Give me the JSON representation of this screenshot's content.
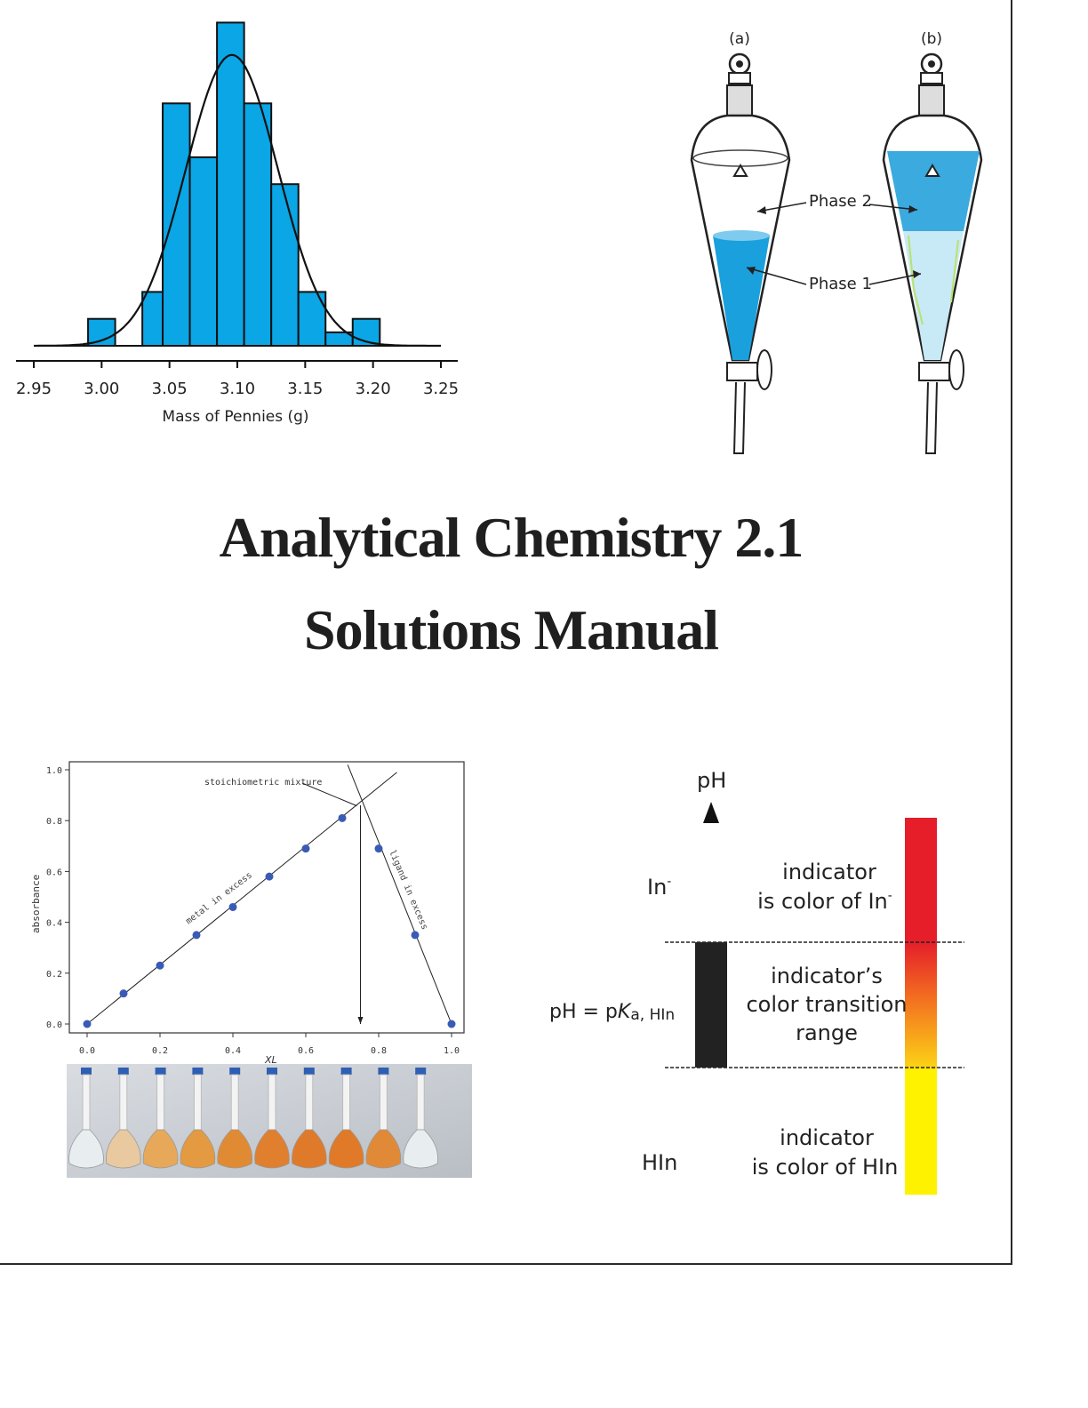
{
  "title": {
    "line1": "Analytical Chemistry 2.1",
    "line2": "Solutions Manual"
  },
  "histogram": {
    "chart_data": {
      "type": "bar",
      "xlabel": "Mass of Pennies (g)",
      "xlim": [
        2.95,
        3.25
      ],
      "x_ticks": [
        "2.95",
        "3.00",
        "3.05",
        "3.10",
        "3.15",
        "3.20",
        "3.25"
      ],
      "bin_edges": [
        2.99,
        3.01,
        3.03,
        3.045,
        3.065,
        3.085,
        3.105,
        3.125,
        3.145,
        3.165,
        3.185,
        3.205
      ],
      "counts": [
        1,
        0,
        2,
        9,
        7,
        12,
        9,
        6,
        2,
        0.5,
        1
      ],
      "normal_fit": {
        "mean": 3.096,
        "sd": 0.034
      },
      "bar_color": "#0aa6e6"
    }
  },
  "funnel": {
    "label_a": "(a)",
    "label_b": "(b)",
    "phase2": "Phase 2",
    "phase1": "Phase 1",
    "water_color": "#1aa0dc"
  },
  "job_plot": {
    "chart_data": {
      "type": "scatter",
      "xlabel": "XL",
      "ylabel": "absorbance",
      "xlim": [
        0,
        1
      ],
      "ylim": [
        0,
        1
      ],
      "x_ticks": [
        "0.0",
        "0.2",
        "0.4",
        "0.6",
        "0.8",
        "1.0"
      ],
      "y_ticks": [
        "0.0",
        "0.2",
        "0.4",
        "0.6",
        "0.8",
        "1.0"
      ],
      "points": [
        [
          0.0,
          0.0
        ],
        [
          0.1,
          0.12
        ],
        [
          0.2,
          0.23
        ],
        [
          0.3,
          0.35
        ],
        [
          0.4,
          0.46
        ],
        [
          0.5,
          0.58
        ],
        [
          0.6,
          0.69
        ],
        [
          0.7,
          0.81
        ],
        [
          0.8,
          0.69
        ],
        [
          0.9,
          0.35
        ],
        [
          1.0,
          0.0
        ]
      ],
      "annotations": [
        "stoichiometric mixture",
        "metal in excess",
        "ligand in excess"
      ],
      "point_color": "#3a5bb5"
    },
    "flask_colors": [
      "#e8edf0",
      "#e8c9a0",
      "#e8a85a",
      "#e39a40",
      "#e08b33",
      "#e07f2e",
      "#df7a2a",
      "#e07a28",
      "#e08a38",
      "#e8edf0"
    ]
  },
  "indicator": {
    "ph_label": "pH",
    "in_minus": "In",
    "in_minus_sup": "-",
    "top_desc_line1": "indicator",
    "top_desc_line2": "is color of In",
    "top_desc_sup": "-",
    "mid_left_prefix": "pH = p",
    "mid_left_K": "K",
    "mid_left_sub": "a, HIn",
    "mid_desc_line1": "indicator’s",
    "mid_desc_line2": "color transition",
    "mid_desc_line3": "range",
    "hin": "HIn",
    "bot_desc_line1": "indicator",
    "bot_desc_line2": "is color of HIn",
    "colors": {
      "red": "#e51e2a",
      "yellow": "#fff200",
      "orange": "#f26a21"
    }
  }
}
